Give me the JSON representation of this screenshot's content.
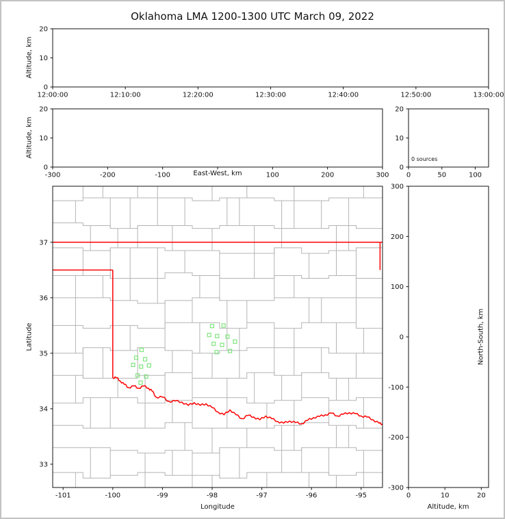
{
  "title": "Oklahoma LMA 1200-1300 UTC March 09, 2022",
  "chart_data": {
    "type": "scatter",
    "title": "Oklahoma LMA 1200-1300 UTC March 09, 2022",
    "grid": false,
    "legend": "none",
    "counts": {
      "sources": 0
    },
    "panels": {
      "time_height": {
        "ylabel": "Altitude, km",
        "xtick_labels": [
          "12:00:00",
          "12:10:00",
          "12:20:00",
          "12:30:00",
          "12:40:00",
          "12:50:00",
          "13:00:00"
        ],
        "ytick_values": [
          0,
          10,
          20
        ],
        "ylim": [
          0,
          20
        ],
        "series": []
      },
      "ew_height": {
        "xlabel": "East-West, km",
        "ylabel": "Altitude, km",
        "xtick_values": [
          -300,
          -200,
          -100,
          0,
          100,
          200,
          300
        ],
        "xtick_labels": [
          "-300",
          "-200",
          "-100",
          "",
          "100",
          "200",
          "300"
        ],
        "xlim": [
          -300,
          300
        ],
        "ytick_values": [
          0,
          10,
          20
        ],
        "ylim": [
          0,
          20
        ],
        "series": []
      },
      "source_histogram": {
        "annotation": "0 sources",
        "xtick_values": [
          0,
          50,
          100
        ],
        "xlim": [
          0,
          120
        ],
        "ytick_values": [
          0,
          10,
          20
        ],
        "ylim": [
          0,
          20
        ],
        "series": []
      },
      "plan_view": {
        "xlabel": "Longitude",
        "ylabel": "Latitude",
        "xtick_values": [
          -101,
          -100,
          -99,
          -98,
          -97,
          -96,
          -95
        ],
        "ytick_values": [
          33,
          34,
          35,
          36,
          37
        ],
        "xlim": [
          -101.21,
          -94.57
        ],
        "ylim": [
          32.58,
          38.01
        ]
      },
      "ns_height": {
        "xlabel": "Altitude, km",
        "ylabel": "North-South, km",
        "xtick_values": [
          0,
          10,
          20
        ],
        "xlim": [
          0,
          22
        ],
        "ytick_values": [
          300,
          200,
          100,
          0,
          -100,
          -200,
          -300
        ],
        "ylim": [
          -300,
          300
        ],
        "series": []
      }
    },
    "station_marker_color": "#7fe57f",
    "stations": [
      [
        -99.42,
        35.06
      ],
      [
        -99.53,
        34.92
      ],
      [
        -99.35,
        34.89
      ],
      [
        -99.59,
        34.79
      ],
      [
        -99.43,
        34.76
      ],
      [
        -99.27,
        34.78
      ],
      [
        -99.5,
        34.6
      ],
      [
        -99.33,
        34.58
      ],
      [
        -99.44,
        34.47
      ],
      [
        -98.0,
        35.49
      ],
      [
        -97.77,
        35.5
      ],
      [
        -98.06,
        35.33
      ],
      [
        -97.9,
        35.31
      ],
      [
        -97.69,
        35.3
      ],
      [
        -97.54,
        35.21
      ],
      [
        -97.97,
        35.17
      ],
      [
        -97.8,
        35.15
      ],
      [
        -97.64,
        35.04
      ],
      [
        -97.91,
        35.02
      ]
    ],
    "counties": {
      "color": "#b4b4b4"
    },
    "state_border": {
      "color": "#ff0000",
      "north": [
        [
          -101.21,
          37.0
        ],
        [
          -94.57,
          37.0
        ]
      ],
      "east": [
        [
          -94.62,
          37.0
        ],
        [
          -94.62,
          36.5
        ]
      ],
      "panhandle_south": [
        [
          -101.21,
          36.5
        ],
        [
          -100.0,
          36.5
        ]
      ],
      "west": [
        [
          -100.0,
          36.5
        ],
        [
          -100.0,
          34.56
        ]
      ],
      "red_river": [
        [
          -100.0,
          34.56
        ],
        [
          -99.93,
          34.56
        ],
        [
          -99.85,
          34.5
        ],
        [
          -99.77,
          34.44
        ],
        [
          -99.68,
          34.38
        ],
        [
          -99.58,
          34.41
        ],
        [
          -99.48,
          34.37
        ],
        [
          -99.38,
          34.41
        ],
        [
          -99.28,
          34.37
        ],
        [
          -99.21,
          34.32
        ],
        [
          -99.13,
          34.21
        ],
        [
          -99.0,
          34.21
        ],
        [
          -98.87,
          34.13
        ],
        [
          -98.74,
          34.14
        ],
        [
          -98.61,
          34.12
        ],
        [
          -98.48,
          34.06
        ],
        [
          -98.36,
          34.11
        ],
        [
          -98.24,
          34.06
        ],
        [
          -98.12,
          34.09
        ],
        [
          -98.0,
          34.02
        ],
        [
          -97.88,
          33.94
        ],
        [
          -97.76,
          33.89
        ],
        [
          -97.64,
          33.98
        ],
        [
          -97.52,
          33.89
        ],
        [
          -97.4,
          33.82
        ],
        [
          -97.28,
          33.88
        ],
        [
          -97.16,
          33.85
        ],
        [
          -97.04,
          33.8
        ],
        [
          -96.92,
          33.87
        ],
        [
          -96.8,
          33.82
        ],
        [
          -96.68,
          33.77
        ],
        [
          -96.56,
          33.74
        ],
        [
          -96.44,
          33.78
        ],
        [
          -96.32,
          33.75
        ],
        [
          -96.2,
          33.73
        ],
        [
          -96.08,
          33.79
        ],
        [
          -95.96,
          33.84
        ],
        [
          -95.84,
          33.86
        ],
        [
          -95.72,
          33.89
        ],
        [
          -95.6,
          33.92
        ],
        [
          -95.48,
          33.87
        ],
        [
          -95.36,
          33.9
        ],
        [
          -95.24,
          33.93
        ],
        [
          -95.12,
          33.91
        ],
        [
          -95.0,
          33.87
        ],
        [
          -94.88,
          33.85
        ],
        [
          -94.76,
          33.8
        ],
        [
          -94.64,
          33.74
        ],
        [
          -94.57,
          33.72
        ]
      ]
    }
  }
}
